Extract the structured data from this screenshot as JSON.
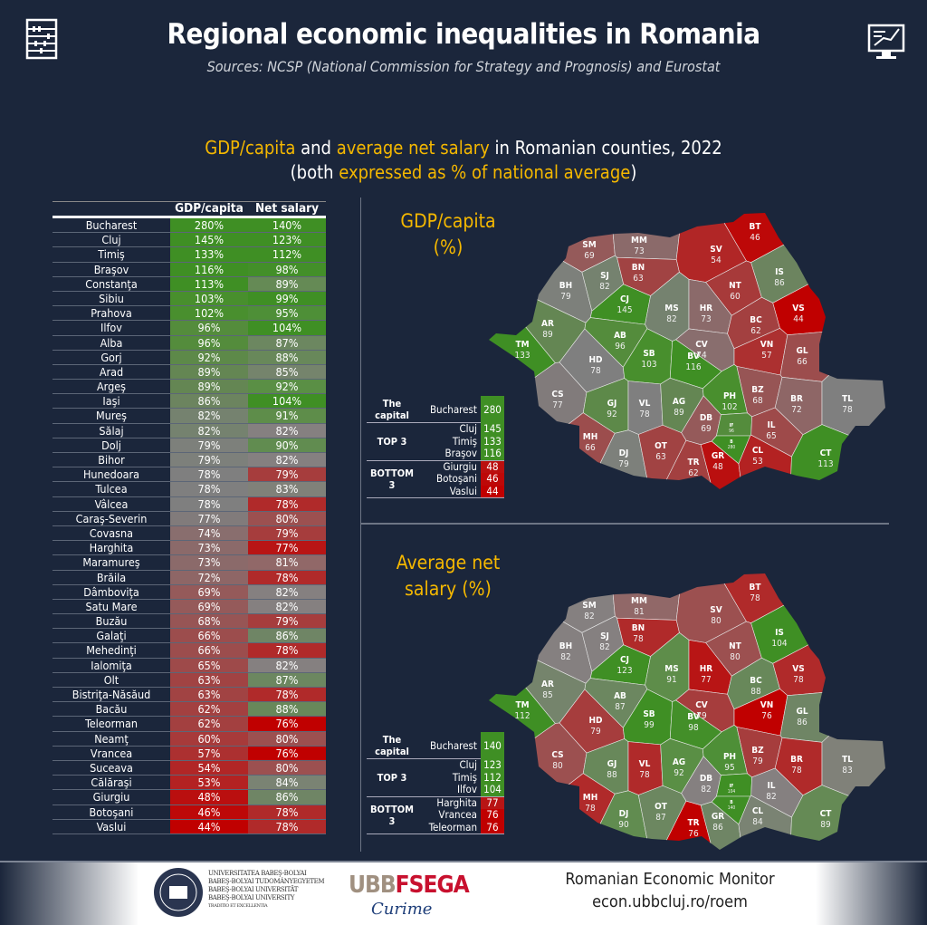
{
  "header": {
    "title": "Regional economic inequalities in Romania",
    "subtitle": "Sources: NCSP (National Commission for Strategy and Prognosis) and Eurostat",
    "left_icon": "abacus-icon",
    "right_icon": "monitor-chart-icon"
  },
  "section": {
    "t1a": "GDP/capita",
    "t1b": " and ",
    "t1c": "average net salary",
    "t1d": " in Romanian counties, 2022",
    "t2a": "(both ",
    "t2b": "expressed as % of national average",
    "t2c": ")"
  },
  "table": {
    "headers": [
      "",
      "GDP/capita",
      "Net salary"
    ],
    "rows": [
      [
        "Bucharest",
        "280%",
        "140%"
      ],
      [
        "Cluj",
        "145%",
        "123%"
      ],
      [
        "Timiş",
        "133%",
        "112%"
      ],
      [
        "Braşov",
        "116%",
        "98%"
      ],
      [
        "Constanţa",
        "113%",
        "89%"
      ],
      [
        "Sibiu",
        "103%",
        "99%"
      ],
      [
        "Prahova",
        "102%",
        "95%"
      ],
      [
        "Ilfov",
        "96%",
        "104%"
      ],
      [
        "Alba",
        "96%",
        "87%"
      ],
      [
        "Gorj",
        "92%",
        "88%"
      ],
      [
        "Arad",
        "89%",
        "85%"
      ],
      [
        "Argeş",
        "89%",
        "92%"
      ],
      [
        "Iaşi",
        "86%",
        "104%"
      ],
      [
        "Mureş",
        "82%",
        "91%"
      ],
      [
        "Sălaj",
        "82%",
        "82%"
      ],
      [
        "Dolj",
        "79%",
        "90%"
      ],
      [
        "Bihor",
        "79%",
        "82%"
      ],
      [
        "Hunedoara",
        "78%",
        "79%"
      ],
      [
        "Tulcea",
        "78%",
        "83%"
      ],
      [
        "Vâlcea",
        "78%",
        "78%"
      ],
      [
        "Caraş-Severin",
        "77%",
        "80%"
      ],
      [
        "Covasna",
        "74%",
        "79%"
      ],
      [
        "Harghita",
        "73%",
        "77%"
      ],
      [
        "Maramureş",
        "73%",
        "81%"
      ],
      [
        "Brăila",
        "72%",
        "78%"
      ],
      [
        "Dâmboviţa",
        "69%",
        "82%"
      ],
      [
        "Satu Mare",
        "69%",
        "82%"
      ],
      [
        "Buzău",
        "68%",
        "79%"
      ],
      [
        "Galaţi",
        "66%",
        "86%"
      ],
      [
        "Mehedinţi",
        "66%",
        "78%"
      ],
      [
        "Ialomiţa",
        "65%",
        "82%"
      ],
      [
        "Olt",
        "63%",
        "87%"
      ],
      [
        "Bistriţa-Năsăud",
        "63%",
        "78%"
      ],
      [
        "Bacău",
        "62%",
        "88%"
      ],
      [
        "Teleorman",
        "62%",
        "76%"
      ],
      [
        "Neamţ",
        "60%",
        "80%"
      ],
      [
        "Vrancea",
        "57%",
        "76%"
      ],
      [
        "Suceava",
        "54%",
        "80%"
      ],
      [
        "Călăraşi",
        "53%",
        "84%"
      ],
      [
        "Giurgiu",
        "48%",
        "86%"
      ],
      [
        "Botoşani",
        "46%",
        "78%"
      ],
      [
        "Vaslui",
        "44%",
        "78%"
      ]
    ]
  },
  "maps": [
    {
      "title1": "GDP/capita",
      "title2": "(%)",
      "values": {
        "SM": 69,
        "MM": 73,
        "BT": 46,
        "SV": 54,
        "BH": 79,
        "SJ": 82,
        "BN": 63,
        "IS": 86,
        "NT": 60,
        "CJ": 145,
        "MS": 82,
        "HR": 73,
        "BC": 62,
        "VS": 44,
        "AR": 89,
        "AB": 96,
        "CV": 74,
        "VN": 57,
        "GL": 66,
        "TM": 133,
        "HD": 78,
        "SB": 103,
        "BV": 116,
        "BZ": 68,
        "BR": 72,
        "TL": 78,
        "CS": 77,
        "GJ": 92,
        "VL": 78,
        "AG": 89,
        "PH": 102,
        "DB": 69,
        "IF": 96,
        "B": 280,
        "IL": 65,
        "MH": 66,
        "DJ": 79,
        "OT": 63,
        "TR": 62,
        "GR": 48,
        "CL": 53,
        "CT": 113
      },
      "legend": {
        "capital_label": "The capital",
        "top_label": "TOP 3",
        "bottom_label": "BOTTOM 3",
        "capital": [
          "Bucharest",
          "280"
        ],
        "top": [
          [
            "Cluj",
            "145"
          ],
          [
            "Timiş",
            "133"
          ],
          [
            "Braşov",
            "116"
          ]
        ],
        "bottom": [
          [
            "Giurgiu",
            "48"
          ],
          [
            "Botoşani",
            "46"
          ],
          [
            "Vaslui",
            "44"
          ]
        ]
      }
    },
    {
      "title1": "Average net",
      "title2": "salary (%)",
      "values": {
        "SM": 82,
        "MM": 81,
        "BT": 78,
        "SV": 80,
        "BH": 82,
        "SJ": 82,
        "BN": 78,
        "IS": 104,
        "NT": 80,
        "CJ": 123,
        "MS": 91,
        "HR": 77,
        "BC": 88,
        "VS": 78,
        "AR": 85,
        "AB": 87,
        "CV": 79,
        "VN": 76,
        "GL": 86,
        "TM": 112,
        "HD": 79,
        "SB": 99,
        "BV": 98,
        "BZ": 79,
        "BR": 78,
        "TL": 83,
        "CS": 80,
        "GJ": 88,
        "VL": 78,
        "AG": 92,
        "PH": 95,
        "DB": 82,
        "IF": 104,
        "B": 140,
        "IL": 82,
        "MH": 78,
        "DJ": 90,
        "OT": 87,
        "TR": 76,
        "GR": 86,
        "CL": 84,
        "CT": 89
      },
      "legend": {
        "capital_label": "The capital",
        "top_label": "TOP 3",
        "bottom_label": "BOTTOM 3",
        "capital": [
          "Bucharest",
          "140"
        ],
        "top": [
          [
            "Cluj",
            "123"
          ],
          [
            "Timiş",
            "112"
          ],
          [
            "Ilfov",
            "104"
          ]
        ],
        "bottom": [
          [
            "Harghita",
            "77"
          ],
          [
            "Vrancea",
            "76"
          ],
          [
            "Teleorman",
            "76"
          ]
        ]
      }
    }
  ],
  "colors": {
    "background": "#1b263b",
    "accent": "#f5b800",
    "high": "#3f8f24",
    "mid": "#7f7f7f",
    "low": "#c00000"
  },
  "footer": {
    "university_lines": [
      "UNIVERSITATEA BABEŞ-BOLYAI",
      "BABEŞ-BOLYAI TUDOMÁNYEGYETEM",
      "BABEŞ-BOLYAI UNIVERSITÄT",
      "BABEŞ-BOLYAI UNIVERSITY",
      "TRADITIO ET EXCELLENTIA"
    ],
    "logo_ubb": "UBB",
    "logo_fsega": "FSEGA",
    "signature": "Curime",
    "monitor": "Romanian Economic Monitor",
    "url": "econ.ubbcluj.ro/roem"
  }
}
